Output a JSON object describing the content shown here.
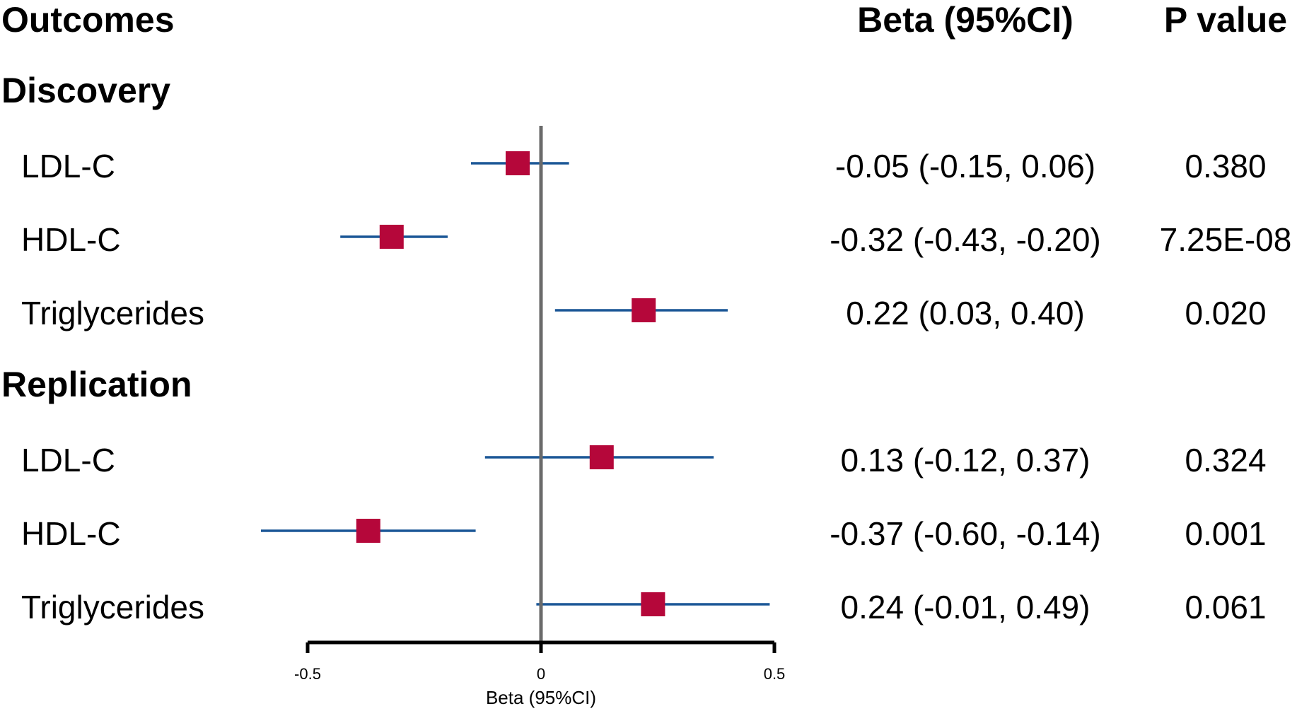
{
  "chart_data": {
    "type": "forest",
    "headers": {
      "outcomes": "Outcomes",
      "beta": "Beta (95%CI)",
      "pvalue": "P value"
    },
    "xlabel": "Beta (95%CI)",
    "xlim": [
      -0.5,
      0.5
    ],
    "xticks": [
      -0.5,
      0,
      0.5
    ],
    "xtick_labels": [
      "-0.5",
      "0",
      "0.5"
    ],
    "reference_line": 0,
    "colors": {
      "marker": "#b5073a",
      "ci_line": "#1a5696",
      "reference_line": "#6a6a6a",
      "axis": "#000000"
    },
    "groups": [
      {
        "name": "Discovery",
        "rows": [
          {
            "label": "LDL-C",
            "beta": -0.05,
            "lower": -0.15,
            "upper": 0.06,
            "ci_text": "-0.05 (-0.15, 0.06)",
            "p": "0.380"
          },
          {
            "label": "HDL-C",
            "beta": -0.32,
            "lower": -0.43,
            "upper": -0.2,
            "ci_text": "-0.32 (-0.43, -0.20)",
            "p": "7.25E-08"
          },
          {
            "label": "Triglycerides",
            "beta": 0.22,
            "lower": 0.03,
            "upper": 0.4,
            "ci_text": "0.22 (0.03, 0.40)",
            "p": "0.020"
          }
        ]
      },
      {
        "name": "Replication",
        "rows": [
          {
            "label": "LDL-C",
            "beta": 0.13,
            "lower": -0.12,
            "upper": 0.37,
            "ci_text": "0.13 (-0.12, 0.37)",
            "p": "0.324"
          },
          {
            "label": "HDL-C",
            "beta": -0.37,
            "lower": -0.6,
            "upper": -0.14,
            "ci_text": "-0.37 (-0.60, -0.14)",
            "p": "0.001"
          },
          {
            "label": "Triglycerides",
            "beta": 0.24,
            "lower": -0.01,
            "upper": 0.49,
            "ci_text": "0.24 (-0.01, 0.49)",
            "p": "0.061"
          }
        ]
      }
    ]
  }
}
